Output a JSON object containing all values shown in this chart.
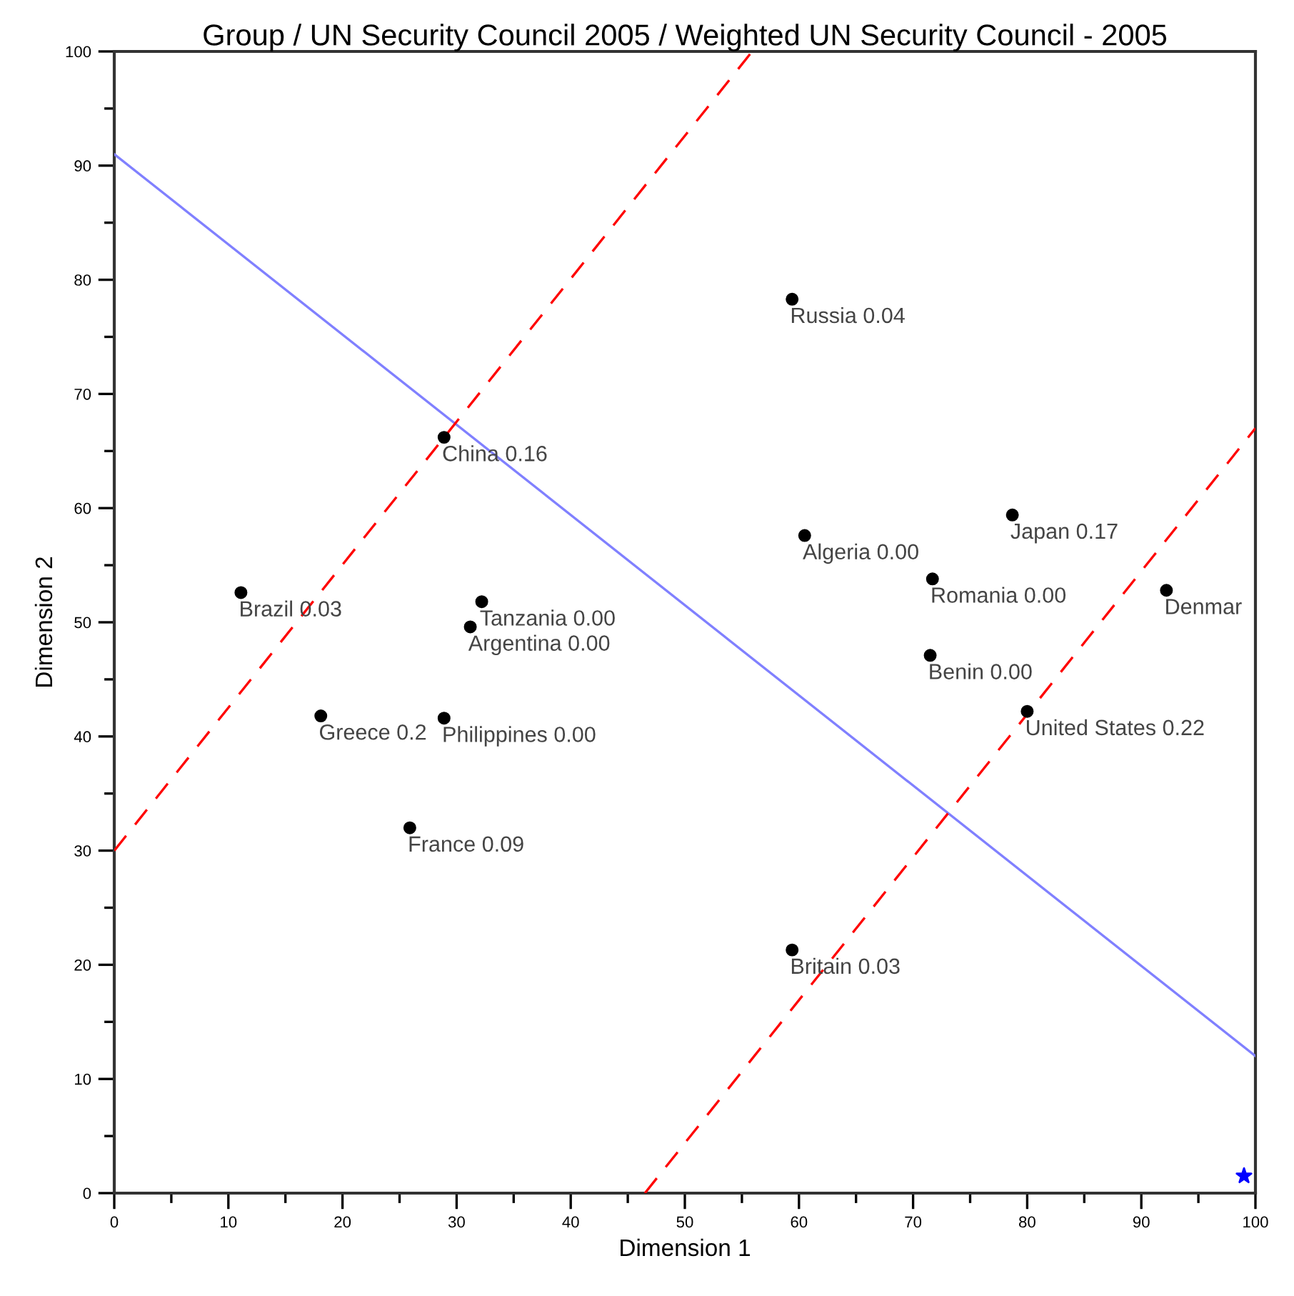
{
  "chart_data": {
    "type": "scatter",
    "title": "Group / UN Security Council 2005 / Weighted UN Security Council - 2005",
    "xlabel": "Dimension 1",
    "ylabel": "Dimension 2",
    "xlim": [
      0,
      100
    ],
    "ylim": [
      0,
      100
    ],
    "xticks": [
      0,
      10,
      20,
      30,
      40,
      50,
      60,
      70,
      80,
      90,
      100
    ],
    "yticks": [
      0,
      10,
      20,
      30,
      40,
      50,
      60,
      70,
      80,
      90,
      100
    ],
    "grid": false,
    "legend": false,
    "series": [
      {
        "color": "#000000",
        "marker": "circle",
        "x": [
          59.4,
          28.9,
          78.7,
          60.5,
          71.7,
          92.2,
          11.1,
          32.2,
          31.2,
          71.5,
          80.0,
          18.1,
          28.9,
          25.9,
          59.4
        ],
        "values": [
          78.3,
          66.2,
          59.4,
          57.6,
          53.8,
          52.8,
          52.6,
          51.8,
          49.6,
          47.1,
          42.2,
          41.8,
          41.6,
          32.0,
          21.3
        ]
      },
      {
        "type": "line",
        "color": "#8080ff",
        "line_style": "solid",
        "x": [
          0,
          100
        ],
        "values": [
          91,
          12
        ]
      },
      {
        "type": "line",
        "color": "#ff0000",
        "line_style": "dashed",
        "x": [
          0,
          55.9
        ],
        "values": [
          30,
          100
        ]
      },
      {
        "type": "line",
        "color": "#ff0000",
        "line_style": "dashed",
        "x": [
          46.5,
          100
        ],
        "values": [
          0,
          67
        ]
      },
      {
        "color": "#0000ff",
        "marker": "star",
        "x": [
          99
        ],
        "values": [
          1.5
        ]
      }
    ],
    "annotations": [
      {
        "text": "Russia 0.04",
        "x": 59.4,
        "y": 78.3
      },
      {
        "text": "China 0.16",
        "x": 28.9,
        "y": 66.2
      },
      {
        "text": "Japan 0.17",
        "x": 78.7,
        "y": 59.4
      },
      {
        "text": "Algeria 0.00",
        "x": 60.5,
        "y": 57.6
      },
      {
        "text": "Romania 0.00",
        "x": 71.7,
        "y": 53.8
      },
      {
        "text": "Denmar",
        "x": 92.2,
        "y": 52.8
      },
      {
        "text": "Brazil 0.03",
        "x": 11.1,
        "y": 52.6
      },
      {
        "text": "Tanzania 0.00",
        "x": 32.2,
        "y": 51.8
      },
      {
        "text": "Argentina 0.00",
        "x": 31.2,
        "y": 49.6
      },
      {
        "text": "Benin 0.00",
        "x": 71.5,
        "y": 47.1
      },
      {
        "text": "United States 0.22",
        "x": 80.0,
        "y": 42.2
      },
      {
        "text": "Greece 0.2",
        "x": 18.1,
        "y": 41.8
      },
      {
        "text": "Philippines 0.00",
        "x": 28.9,
        "y": 41.6
      },
      {
        "text": "France 0.09",
        "x": 25.9,
        "y": 32.0
      },
      {
        "text": "Britain 0.03",
        "x": 59.4,
        "y": 21.3
      }
    ]
  }
}
